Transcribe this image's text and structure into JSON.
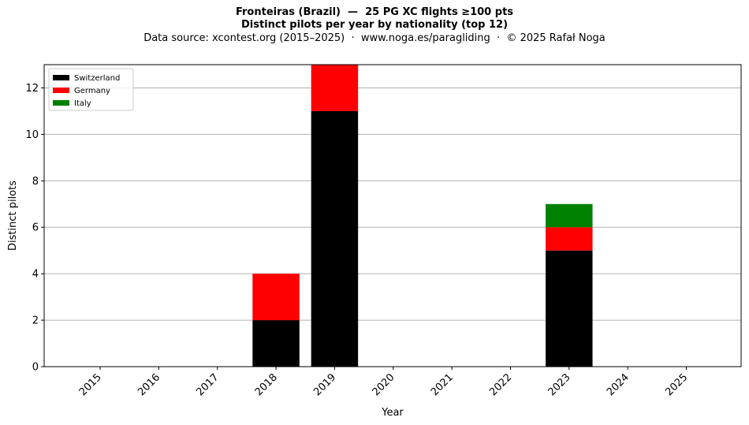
{
  "chart_data": {
    "type": "bar",
    "stacked": true,
    "title_lines": [
      "Fronteiras (Brazil)  —  25 PG XC flights ≥100 pts",
      "Distinct pilots per year by nationality (top 12)"
    ],
    "subtitle": "Data source: xcontest.org (2015–2025)  ·  www.noga.es/paragliding  ·  © 2025 Rafał Noga",
    "xlabel": "Year",
    "ylabel": "Distinct pilots",
    "categories": [
      "2015",
      "2016",
      "2017",
      "2018",
      "2019",
      "2020",
      "2021",
      "2022",
      "2023",
      "2024",
      "2025"
    ],
    "series": [
      {
        "name": "Switzerland",
        "color": "#000000",
        "values": [
          0,
          0,
          0,
          2,
          11,
          0,
          0,
          0,
          5,
          0,
          0
        ]
      },
      {
        "name": "Germany",
        "color": "#ff0000",
        "values": [
          0,
          0,
          0,
          2,
          2,
          0,
          0,
          0,
          1,
          0,
          0
        ]
      },
      {
        "name": "Italy",
        "color": "#008000",
        "values": [
          0,
          0,
          0,
          0,
          0,
          0,
          0,
          0,
          1,
          0,
          0
        ]
      }
    ],
    "ylim": [
      0,
      13
    ],
    "yticks": [
      0,
      2,
      4,
      6,
      8,
      10,
      12
    ],
    "grid": "horizontal",
    "legend_position": "top-left"
  }
}
